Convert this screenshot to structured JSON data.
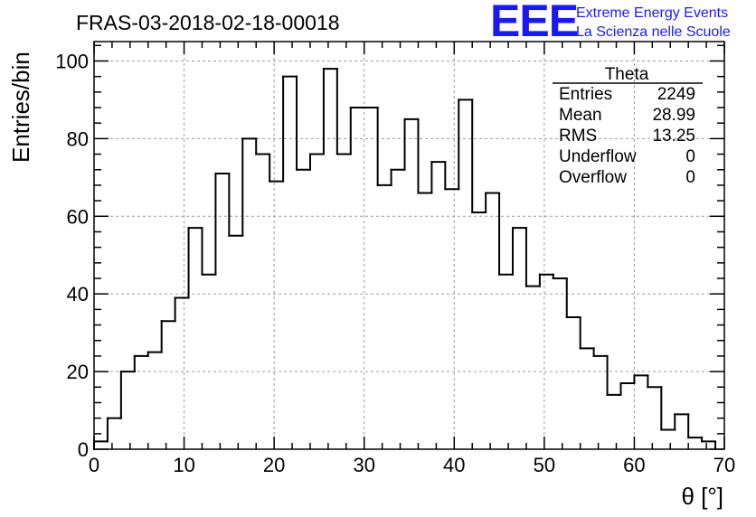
{
  "chart_data": {
    "type": "histogram",
    "title": "FRAS-03-2018-02-18-00018",
    "xlabel": "θ [°]",
    "ylabel": "Entries/bin",
    "xlim": [
      0,
      70
    ],
    "ylim": [
      0,
      105
    ],
    "grid": true,
    "bin_width": 1.5,
    "values": [
      2,
      8,
      20,
      24,
      25,
      33,
      39,
      57,
      45,
      71,
      55,
      80,
      76,
      69,
      96,
      72,
      76,
      98,
      76,
      88,
      88,
      68,
      72,
      85,
      66,
      74,
      67,
      90,
      61,
      66,
      45,
      57,
      42,
      45,
      44,
      34,
      26,
      24,
      14,
      17,
      19,
      16,
      5,
      9,
      3,
      2
    ],
    "x_ticks": [
      0,
      10,
      20,
      30,
      40,
      50,
      60,
      70
    ],
    "x_tick_labels": [
      "0",
      "10",
      "20",
      "30",
      "40",
      "50",
      "60",
      "70"
    ],
    "y_ticks": [
      0,
      20,
      40,
      60,
      80,
      100
    ],
    "y_tick_labels": [
      "0",
      "20",
      "40",
      "60",
      "80",
      "100"
    ],
    "stats_box": {
      "name": "Theta",
      "rows": [
        {
          "label": "Entries",
          "value": "2249"
        },
        {
          "label": "Mean",
          "value": "28.99"
        },
        {
          "label": "RMS",
          "value": "13.25"
        },
        {
          "label": "Underflow",
          "value": "0"
        },
        {
          "label": "Overflow",
          "value": "0"
        }
      ]
    }
  },
  "logo": {
    "big": "EEE",
    "line1": "Extreme Energy Events",
    "line2": "La Scienza nelle Scuole"
  }
}
